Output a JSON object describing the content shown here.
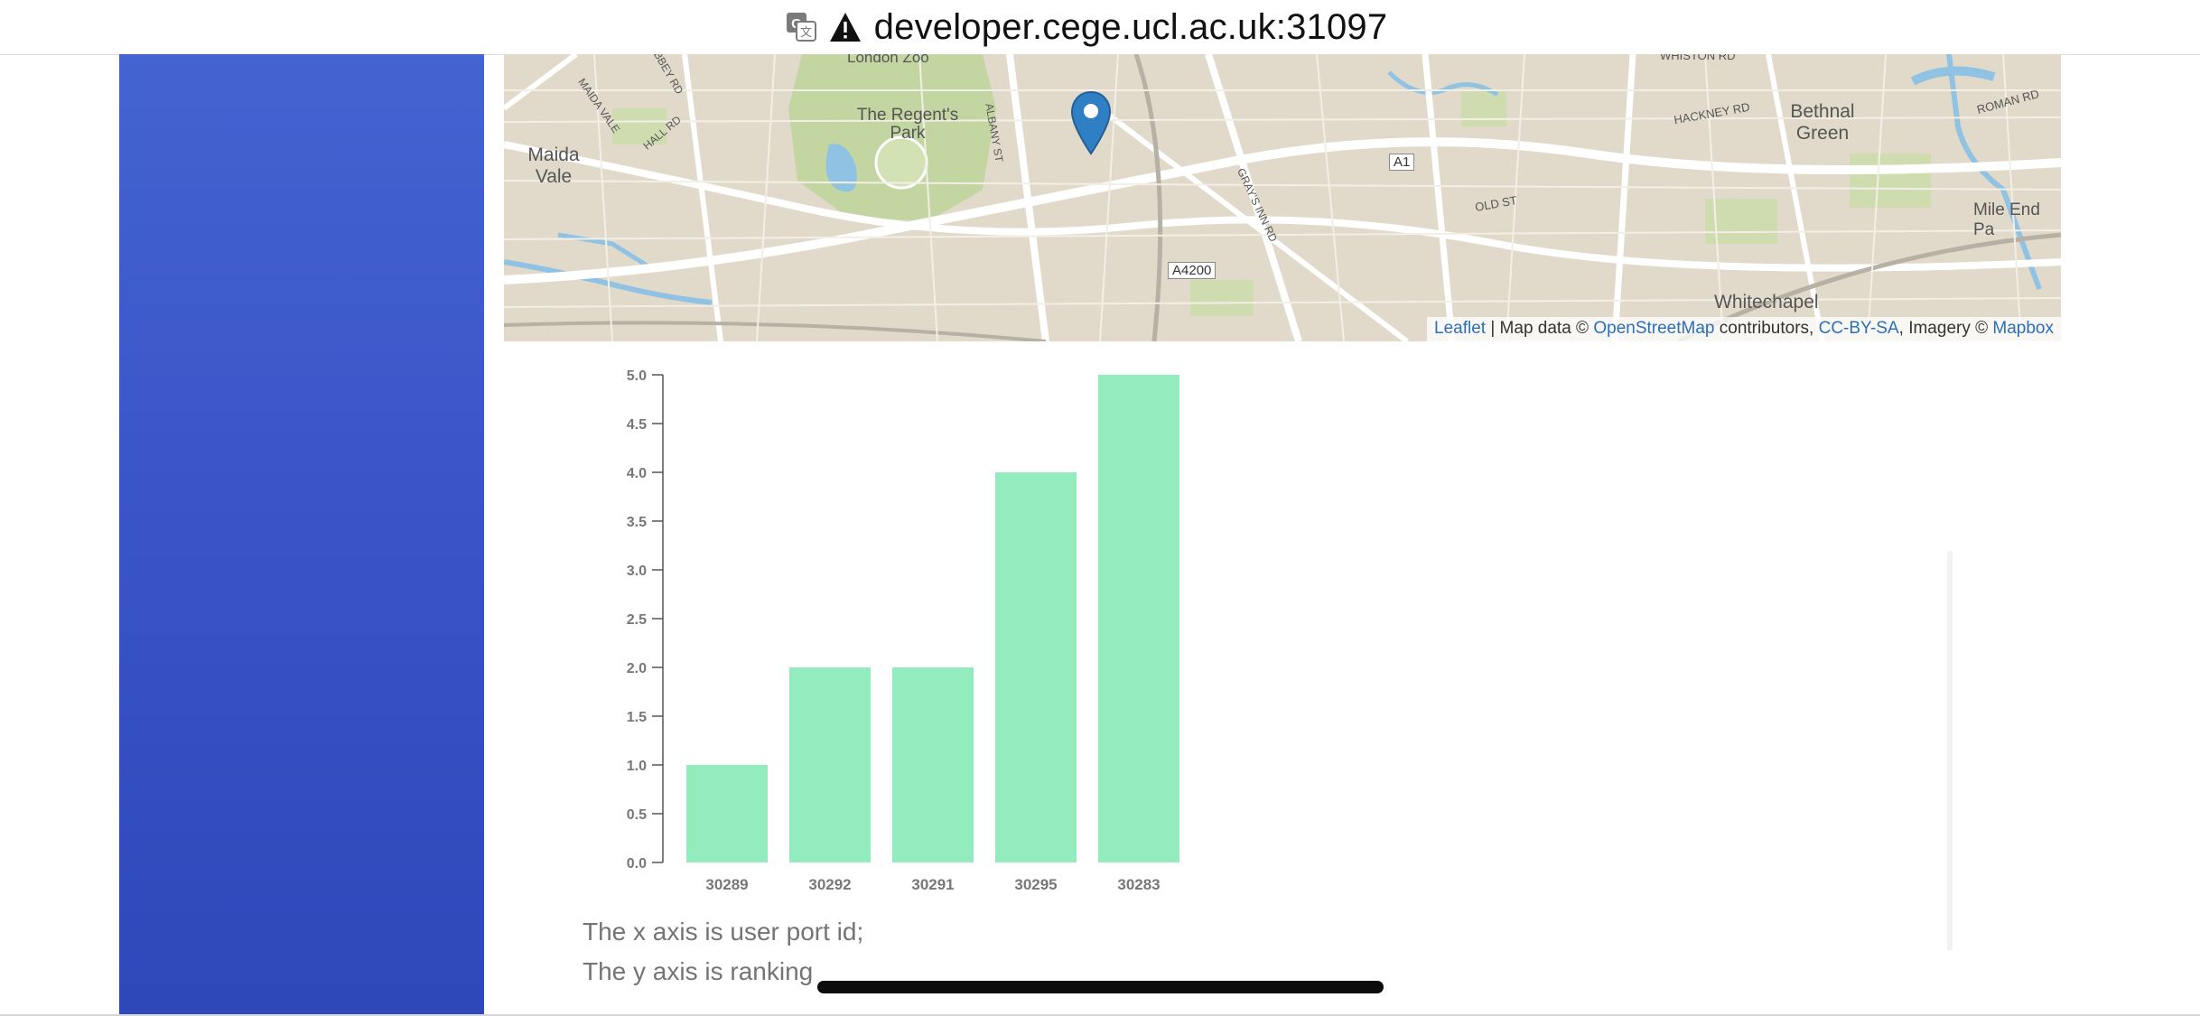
{
  "browser": {
    "url": "developer.cege.ucl.ac.uk:31097",
    "icons": [
      "translate-icon",
      "warning-icon"
    ]
  },
  "sidebar": {
    "color_top": "#4563d1",
    "color_bottom": "#2e48ba"
  },
  "map": {
    "labels": {
      "london_zoo": "London Zoo",
      "regents_park": "The Regent's Park",
      "maida_vale": "Maida Vale",
      "maida_vale_road": "MAIDA VALE",
      "hall_rd": "HALL RD",
      "abbey_rd": "ABBEY RD",
      "albany_st": "ALBANY ST",
      "grays_inn_rd": "GRAY'S INN RD",
      "a4200": "A4200",
      "a1": "A1",
      "old_st": "OLD ST",
      "hackney_rd": "HACKNEY RD",
      "bethnal_green": "Bethnal Green",
      "roman_rd": "ROMAN RD",
      "mile_end": "Mile End Pa",
      "whitechapel": "Whitechapel",
      "whiston_rd": "WHISTON RD"
    },
    "marker_icon": "map-marker-icon",
    "attribution": {
      "leaflet": "Leaflet",
      "sep1": " | Map data © ",
      "osm": "OpenStreetMap",
      "contributors": " contributors, ",
      "license": "CC-BY-SA",
      "imagery": ", Imagery © ",
      "mapbox": "Mapbox"
    }
  },
  "chart_data": {
    "type": "bar",
    "categories": [
      "30289",
      "30292",
      "30291",
      "30295",
      "30283"
    ],
    "values": [
      1,
      2,
      2,
      4,
      5
    ],
    "ylim": [
      0,
      5
    ],
    "yticks": [
      "0.0",
      "0.5",
      "1.0",
      "1.5",
      "2.0",
      "2.5",
      "3.0",
      "3.5",
      "4.0",
      "4.5",
      "5.0"
    ],
    "bar_color": "#92ecbd",
    "title": "",
    "xlabel": "",
    "ylabel": ""
  },
  "captions": {
    "x_axis": "The x axis is user port id;",
    "y_axis": "The y axis is ranking"
  }
}
